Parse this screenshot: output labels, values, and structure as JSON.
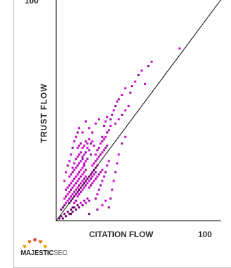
{
  "chart_data": {
    "type": "scatter",
    "title": "",
    "xlabel": "CITATION FLOW",
    "ylabel": "TRUST FLOW",
    "xlim": [
      0,
      100
    ],
    "ylim": [
      0,
      100
    ],
    "x_tick_labels": [
      "100"
    ],
    "y_tick_labels": [
      "100"
    ],
    "grid": false,
    "legend": "none",
    "diagonal_reference_line": {
      "from": [
        0,
        0
      ],
      "to": [
        100,
        100
      ]
    },
    "point_color": "#cc00cc",
    "series": [
      {
        "values": [
          [
            2,
            1
          ],
          [
            3,
            2
          ],
          [
            4,
            1
          ],
          [
            5,
            3
          ],
          [
            6,
            2
          ],
          [
            7,
            4
          ],
          [
            8,
            3
          ],
          [
            9,
            5
          ],
          [
            10,
            4
          ],
          [
            11,
            6
          ],
          [
            12,
            5
          ],
          [
            13,
            7
          ],
          [
            14,
            6
          ],
          [
            15,
            8
          ],
          [
            16,
            7
          ],
          [
            17,
            9
          ],
          [
            18,
            8
          ],
          [
            19,
            10
          ],
          [
            20,
            9
          ],
          [
            3,
            5
          ],
          [
            4,
            6
          ],
          [
            5,
            7
          ],
          [
            6,
            8
          ],
          [
            7,
            9
          ],
          [
            8,
            10
          ],
          [
            9,
            11
          ],
          [
            10,
            12
          ],
          [
            11,
            13
          ],
          [
            12,
            14
          ],
          [
            13,
            15
          ],
          [
            14,
            16
          ],
          [
            15,
            17
          ],
          [
            16,
            18
          ],
          [
            17,
            19
          ],
          [
            18,
            20
          ],
          [
            5,
            10
          ],
          [
            6,
            11
          ],
          [
            7,
            12
          ],
          [
            8,
            13
          ],
          [
            9,
            14
          ],
          [
            10,
            15
          ],
          [
            11,
            16
          ],
          [
            12,
            17
          ],
          [
            13,
            18
          ],
          [
            14,
            19
          ],
          [
            15,
            20
          ],
          [
            16,
            21
          ],
          [
            17,
            22
          ],
          [
            18,
            23
          ],
          [
            6,
            14
          ],
          [
            7,
            15
          ],
          [
            8,
            16
          ],
          [
            9,
            17
          ],
          [
            10,
            18
          ],
          [
            11,
            19
          ],
          [
            12,
            20
          ],
          [
            13,
            21
          ],
          [
            14,
            22
          ],
          [
            15,
            23
          ],
          [
            16,
            24
          ],
          [
            17,
            25
          ],
          [
            8,
            20
          ],
          [
            9,
            21
          ],
          [
            10,
            22
          ],
          [
            11,
            23
          ],
          [
            12,
            24
          ],
          [
            13,
            25
          ],
          [
            14,
            26
          ],
          [
            15,
            27
          ],
          [
            16,
            28
          ],
          [
            17,
            26
          ],
          [
            18,
            27
          ],
          [
            19,
            28
          ],
          [
            10,
            24
          ],
          [
            11,
            26
          ],
          [
            12,
            28
          ],
          [
            13,
            29
          ],
          [
            14,
            30
          ],
          [
            15,
            31
          ],
          [
            16,
            29
          ],
          [
            17,
            30
          ],
          [
            18,
            31
          ],
          [
            19,
            33
          ],
          [
            20,
            32
          ],
          [
            21,
            30
          ],
          [
            13,
            33
          ],
          [
            14,
            34
          ],
          [
            15,
            35
          ],
          [
            16,
            33
          ],
          [
            17,
            34
          ],
          [
            18,
            36
          ],
          [
            19,
            35
          ],
          [
            20,
            37
          ],
          [
            21,
            35
          ],
          [
            22,
            36
          ],
          [
            23,
            34
          ],
          [
            8,
            8
          ],
          [
            9,
            9
          ],
          [
            10,
            10
          ],
          [
            11,
            11
          ],
          [
            12,
            12
          ],
          [
            13,
            13
          ],
          [
            14,
            14
          ],
          [
            15,
            15
          ],
          [
            16,
            16
          ],
          [
            17,
            17
          ],
          [
            18,
            18
          ],
          [
            19,
            19
          ],
          [
            20,
            20
          ],
          [
            21,
            21
          ],
          [
            22,
            22
          ],
          [
            23,
            23
          ],
          [
            24,
            24
          ],
          [
            25,
            25
          ],
          [
            9,
            3
          ],
          [
            10,
            6
          ],
          [
            11,
            8
          ],
          [
            12,
            9
          ],
          [
            13,
            11
          ],
          [
            14,
            12
          ],
          [
            15,
            13
          ],
          [
            16,
            14
          ],
          [
            17,
            15
          ],
          [
            18,
            16
          ],
          [
            19,
            17
          ],
          [
            20,
            18
          ],
          [
            21,
            19
          ],
          [
            22,
            20
          ],
          [
            23,
            21
          ],
          [
            24,
            22
          ],
          [
            22,
            25
          ],
          [
            23,
            26
          ],
          [
            24,
            27
          ],
          [
            25,
            28
          ],
          [
            26,
            29
          ],
          [
            27,
            30
          ],
          [
            28,
            31
          ],
          [
            29,
            32
          ],
          [
            30,
            33
          ],
          [
            31,
            34
          ],
          [
            20,
            15
          ],
          [
            21,
            16
          ],
          [
            22,
            17
          ],
          [
            23,
            18
          ],
          [
            24,
            19
          ],
          [
            25,
            20
          ],
          [
            26,
            21
          ],
          [
            27,
            22
          ],
          [
            28,
            23
          ],
          [
            24,
            30
          ],
          [
            25,
            32
          ],
          [
            26,
            33
          ],
          [
            27,
            35
          ],
          [
            28,
            36
          ],
          [
            29,
            37
          ],
          [
            30,
            38
          ],
          [
            31,
            40
          ],
          [
            32,
            41
          ],
          [
            33,
            43
          ],
          [
            24,
            10
          ],
          [
            25,
            12
          ],
          [
            26,
            14
          ],
          [
            27,
            16
          ],
          [
            28,
            18
          ],
          [
            29,
            20
          ],
          [
            30,
            22
          ],
          [
            31,
            25
          ],
          [
            32,
            27
          ],
          [
            29,
            43
          ],
          [
            30,
            45
          ],
          [
            31,
            47
          ],
          [
            33,
            46
          ],
          [
            34,
            48
          ],
          [
            35,
            50
          ],
          [
            36,
            52
          ],
          [
            37,
            54
          ],
          [
            20,
            42
          ],
          [
            22,
            40
          ],
          [
            24,
            44
          ],
          [
            26,
            46
          ],
          [
            28,
            38
          ],
          [
            36,
            44
          ],
          [
            38,
            46
          ],
          [
            40,
            48
          ],
          [
            42,
            50
          ],
          [
            44,
            52
          ],
          [
            45,
            58
          ],
          [
            46,
            61
          ],
          [
            48,
            63
          ],
          [
            50,
            66
          ],
          [
            52,
            68
          ],
          [
            54,
            62
          ],
          [
            38,
            55
          ],
          [
            40,
            57
          ],
          [
            42,
            60
          ],
          [
            56,
            70
          ],
          [
            58,
            72
          ],
          [
            75,
            78
          ],
          [
            33,
            10
          ],
          [
            34,
            14
          ],
          [
            35,
            18
          ],
          [
            36,
            22
          ],
          [
            37,
            26
          ],
          [
            38,
            30
          ],
          [
            40,
            35
          ],
          [
            42,
            38
          ],
          [
            20,
            3
          ],
          [
            25,
            5
          ],
          [
            28,
            7
          ],
          [
            30,
            9
          ],
          [
            32,
            6
          ],
          [
            5,
            18
          ],
          [
            6,
            22
          ],
          [
            7,
            25
          ],
          [
            8,
            27
          ],
          [
            9,
            30
          ],
          [
            10,
            33
          ],
          [
            11,
            36
          ],
          [
            12,
            38
          ],
          [
            13,
            40
          ],
          [
            14,
            42
          ],
          [
            16,
            40
          ],
          [
            18,
            45
          ]
        ]
      }
    ]
  },
  "logo": {
    "brand_bold": "MAJESTIC",
    "brand_light": "SEO"
  }
}
